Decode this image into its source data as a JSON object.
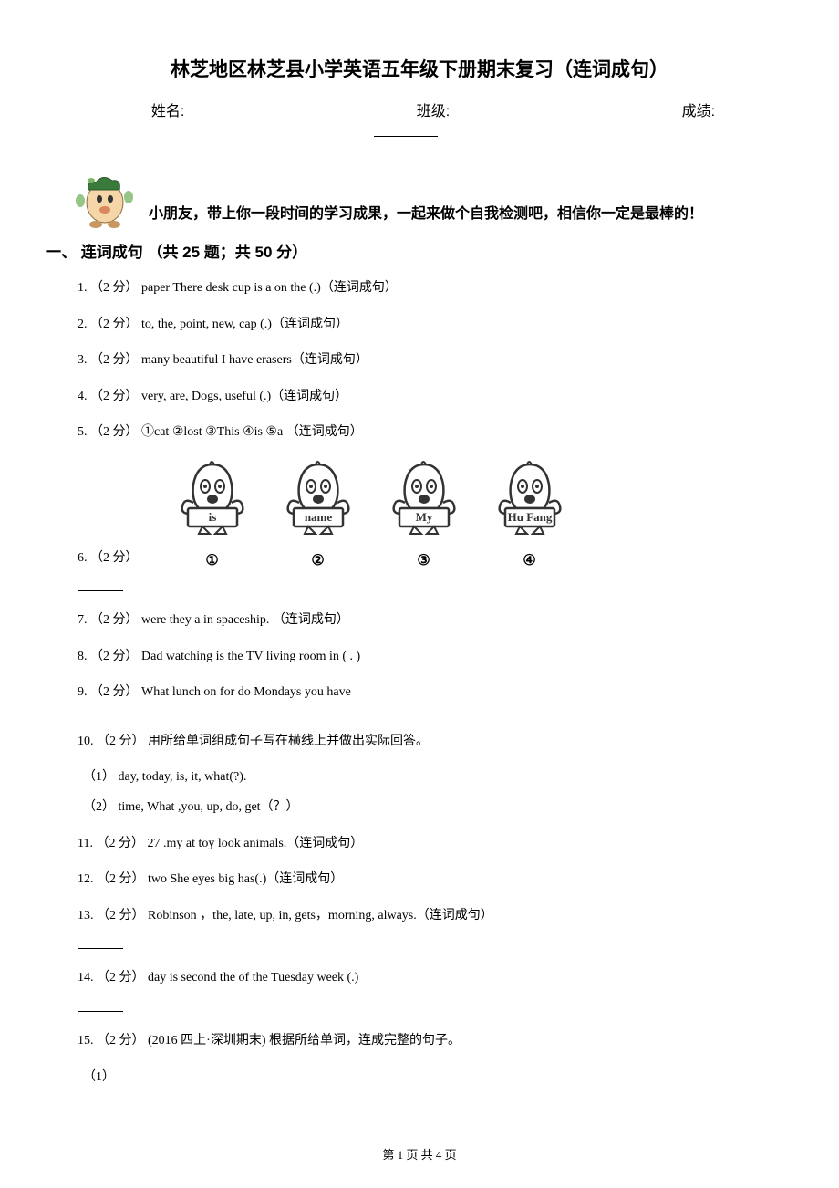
{
  "title": "林芝地区林芝县小学英语五年级下册期末复习（连词成句）",
  "info": {
    "name_label": "姓名:",
    "class_label": "班级:",
    "score_label": "成绩:"
  },
  "intro": "小朋友，带上你一段时间的学习成果，一起来做个自我检测吧，相信你一定是最棒的！",
  "section": {
    "label": "一、 连词成句 （共 25 题；共 50 分）"
  },
  "questions": {
    "q1": "1. （2 分） paper    There    desk    cup    is    a    on    the    (.)（连词成句）",
    "q2": "2. （2 分） to, the, point, new, cap (.)（连词成句）",
    "q3": "3. （2 分） many    beautiful    I    have    erasers（连词成句）",
    "q4": "4. （2 分） very, are, Dogs, useful (.)（连词成句）",
    "q5": "5. （2 分） ①cat        ②lost          ③This        ④is    ⑤a      （连词成句）",
    "q6_label": "6. （2 分）",
    "q6_chars": [
      {
        "word": "is",
        "num": "①"
      },
      {
        "word": "name",
        "num": "②"
      },
      {
        "word": "My",
        "num": "③"
      },
      {
        "word": "Hu Fang",
        "num": "④"
      }
    ],
    "q7": "7. （2 分） were      they   a   in    spaceship. （连词成句）",
    "q8": "8. （2 分） Dad   watching   is   the   TV    living    room   in ( . )",
    "q9": "9. （2 分） What        lunch     on     for     do      Mondays       you       have",
    "q10": "10. （2 分） 用所给单词组成句子写在横线上并做出实际回答。",
    "q10_1": "（1） day, today, is, it, what(?).",
    "q10_2": "（2） time, What ,you, up, do, get（？）",
    "q11": "11. （2 分） 27 .my      at      toy      look       animals.（连词成句）",
    "q12": "12. （2 分） two      She      eyes      big      has(.)（连词成句）",
    "q13": "13. （2 分） Robinson ，the, late,   up,   in,  gets，morning,   always.（连词成句）",
    "q14": "14. （2 分） day    is    second   the    of   the    Tuesday   week    (.)",
    "q15": "15. （2 分） (2016 四上·深圳期末) 根据所给单词，连成完整的句子。",
    "q15_1": "（1）"
  },
  "footer": "第 1 页 共 4 页",
  "colors": {
    "text": "#000000",
    "background": "#ffffff",
    "mascot_skin": "#f5d6a8",
    "mascot_hat": "#3a7a3a",
    "mascot_clover": "#7ab868",
    "char_outline": "#333333",
    "char_fill": "#ffffff"
  }
}
